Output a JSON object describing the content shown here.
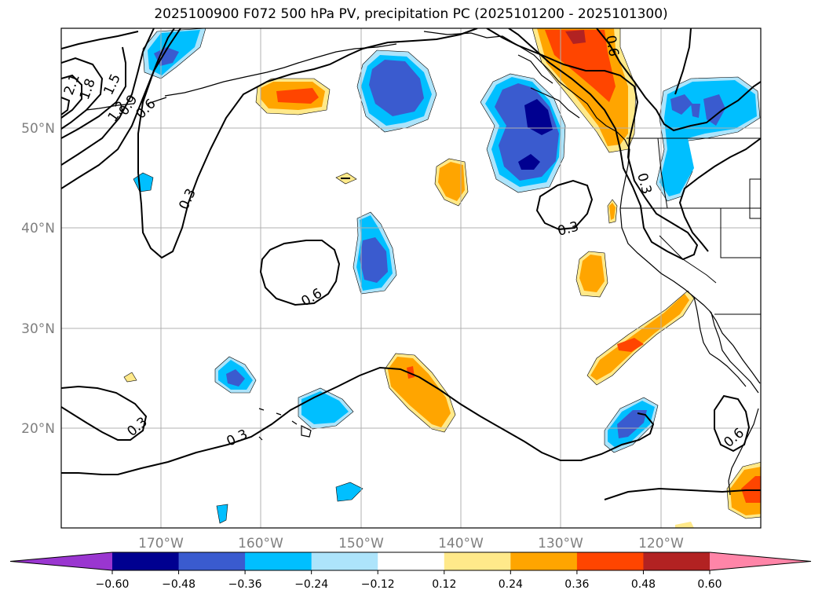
{
  "title": "2025100900 F072 500 hPa PV, precipitation PC (2025101200 - 2025101300)",
  "map": {
    "lat_labels": [
      "50°N",
      "40°N",
      "30°N",
      "20°N"
    ],
    "lon_labels": [
      "170°W",
      "160°W",
      "150°W",
      "140°W",
      "130°W",
      "120°W"
    ],
    "contour_labels": [
      "2.1",
      "1.8",
      "1.5",
      "1.2",
      "0.9",
      "0.6",
      "0.3",
      "0.3",
      "0.6",
      "0.3",
      "0.6",
      "0.3",
      "0.3",
      "0.6"
    ]
  },
  "colorbar": {
    "levels": [
      "−0.60",
      "−0.48",
      "−0.36",
      "−0.24",
      "−0.12",
      "0.12",
      "0.24",
      "0.36",
      "0.48",
      "0.60"
    ],
    "colors": [
      "#9a36d0",
      "#000090",
      "#3a5bcf",
      "#00bfff",
      "#ade4fb",
      "#ffffff",
      "#ffe98a",
      "#ffa500",
      "#ff4500",
      "#b22222",
      "#ff85a8"
    ]
  },
  "colors": {
    "pos1": "#ffe98a",
    "pos2": "#ffa500",
    "pos3": "#ff4500",
    "pos4": "#b22222",
    "neg1": "#ade4fb",
    "neg2": "#00bfff",
    "neg3": "#3a5bcf",
    "neg4": "#000090"
  }
}
